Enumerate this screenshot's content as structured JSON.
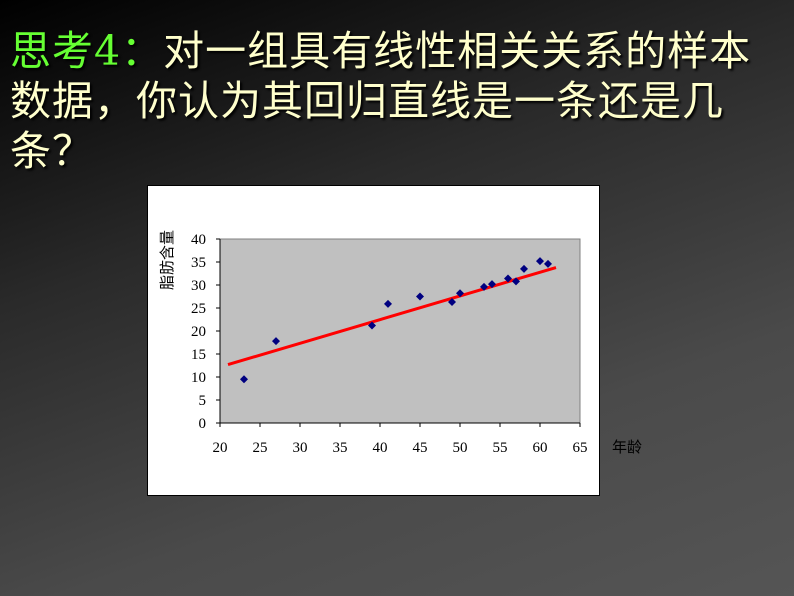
{
  "title": {
    "prefix": "思考4：",
    "text": "对一组具有线性相关关系的样本数据，你认为其回归直线是一条还是几条？"
  },
  "chart_data": {
    "type": "scatter",
    "xlabel": "年龄",
    "ylabel": "脂肪含量",
    "xlim": [
      20,
      65
    ],
    "ylim": [
      0,
      40
    ],
    "xticks": [
      20,
      25,
      30,
      35,
      40,
      45,
      50,
      55,
      60,
      65
    ],
    "yticks": [
      0,
      5,
      10,
      15,
      20,
      25,
      30,
      35,
      40
    ],
    "x": [
      23,
      27,
      39,
      41,
      45,
      49,
      50,
      53,
      54,
      56,
      57,
      58,
      60,
      61
    ],
    "y": [
      9.5,
      17.8,
      21.2,
      25.9,
      27.5,
      26.3,
      28.2,
      29.6,
      30.2,
      31.4,
      30.8,
      33.5,
      35.2,
      34.6
    ],
    "regression_line": {
      "x": [
        21,
        62
      ],
      "y": [
        12.7,
        33.8
      ]
    },
    "colors": {
      "points": "#000080",
      "line": "#ff0000",
      "plot_bg": "#c0c0c0"
    },
    "grid": false
  }
}
